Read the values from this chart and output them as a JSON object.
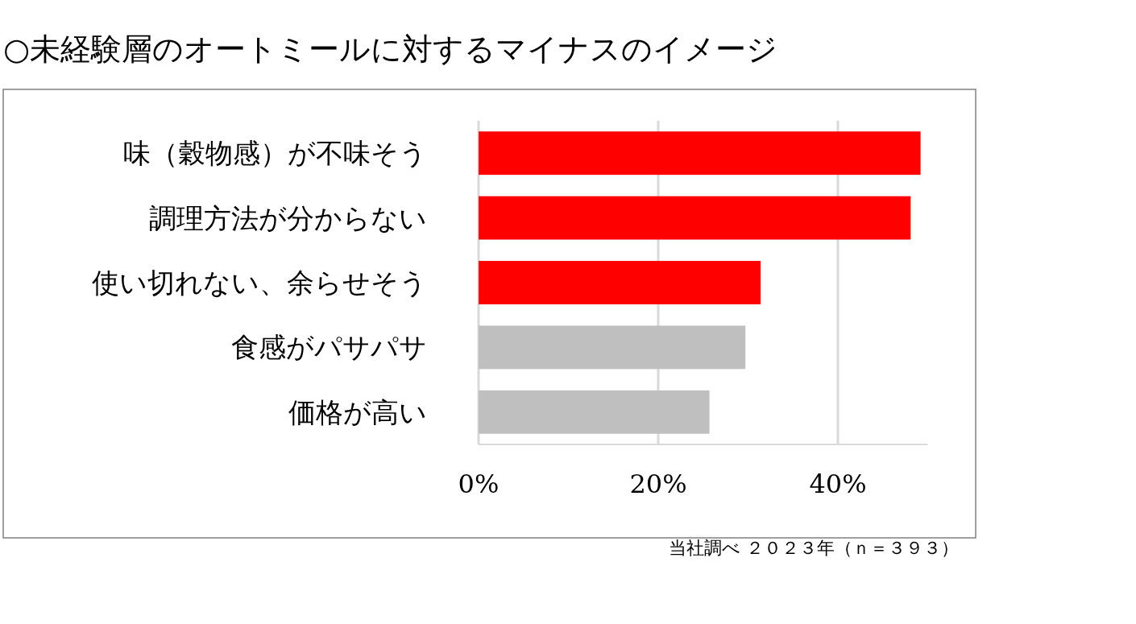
{
  "chart_data": {
    "type": "bar",
    "orientation": "horizontal",
    "title": "○未経験層のオートミールに対するマイナスのイメージ",
    "categories": [
      "味（穀物感）が不味そう",
      "調理方法が分からない",
      "使い切れない、余らせそう",
      "食感がパサパサ",
      "価格が高い"
    ],
    "values": [
      49.2,
      48.1,
      31.4,
      29.7,
      25.7
    ],
    "colors": [
      "#ff0000",
      "#ff0000",
      "#ff0000",
      "#bfbfbf",
      "#bfbfbf"
    ],
    "xticks": [
      {
        "value": 0,
        "label": "0%"
      },
      {
        "value": 20,
        "label": "20%"
      },
      {
        "value": 40,
        "label": "40%"
      }
    ],
    "xlim": [
      0,
      50
    ],
    "grid": "x",
    "annotations": [
      "当社調べ ２０２３年（ｎ＝３９３）"
    ]
  }
}
